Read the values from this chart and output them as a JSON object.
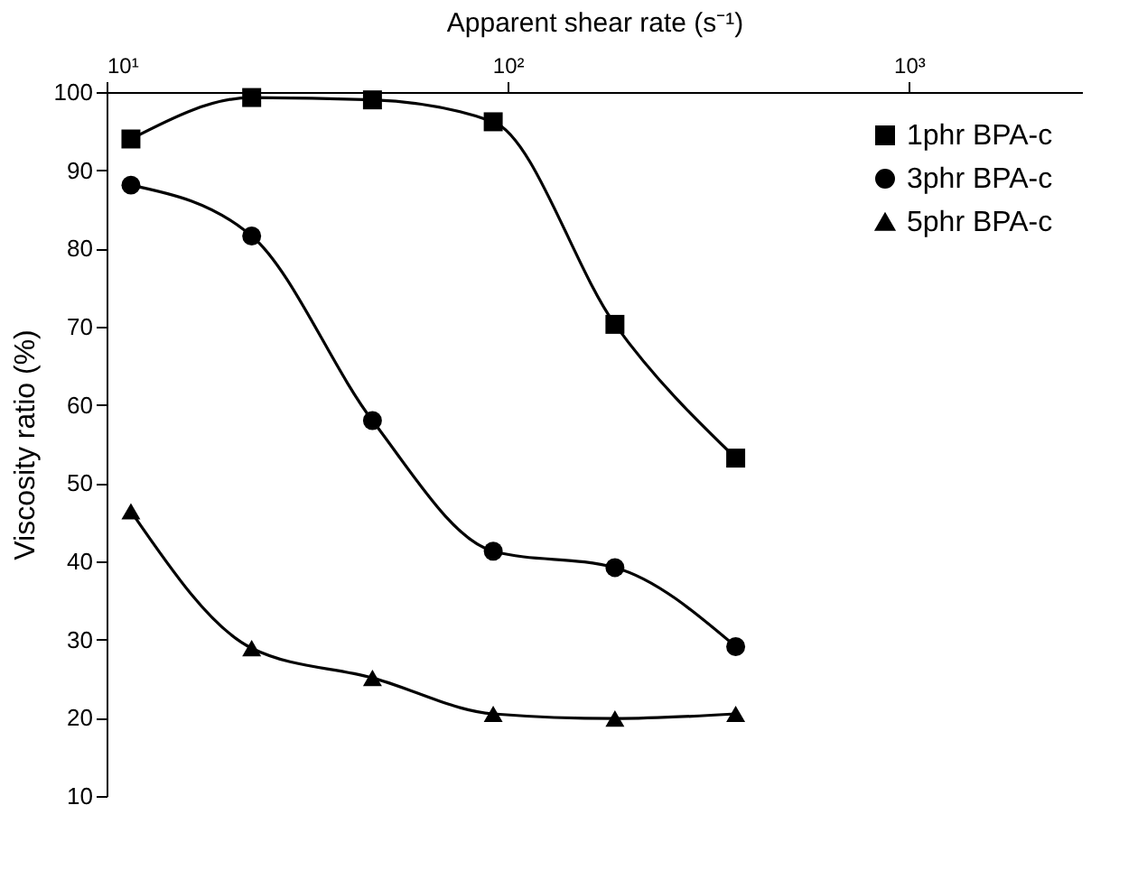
{
  "chart_data": {
    "type": "line",
    "xlabel": "Apparent shear rate (s⁻¹)",
    "ylabel": "Viscosity ratio (%)",
    "log": "x",
    "x": [
      11.5,
      23,
      46,
      92,
      185,
      370
    ],
    "xlim": [
      10,
      2700
    ],
    "xticks": [
      {
        "value": 10,
        "label": "10¹"
      },
      {
        "value": 100,
        "label": "10²"
      },
      {
        "value": 1000,
        "label": "10³"
      }
    ],
    "ylim": [
      10,
      100
    ],
    "yticks": [
      10,
      20,
      30,
      40,
      50,
      60,
      70,
      80,
      90,
      100
    ],
    "grid": false,
    "legend": "top right",
    "line_style": "solid",
    "series": [
      {
        "name": "1phr BPA-c",
        "color": "#000000",
        "marker": "square",
        "values": [
          94,
          99.3,
          99,
          96.2,
          70.3,
          53.2
        ]
      },
      {
        "name": "3phr BPA-c",
        "color": "#000000",
        "marker": "circle",
        "values": [
          88.1,
          81.6,
          58,
          41.3,
          39.2,
          29.1
        ]
      },
      {
        "name": "5phr BPA-c",
        "color": "#000000",
        "marker": "triangle",
        "values": [
          46.4,
          28.9,
          25.1,
          20.5,
          19.9,
          20.5
        ]
      }
    ]
  }
}
